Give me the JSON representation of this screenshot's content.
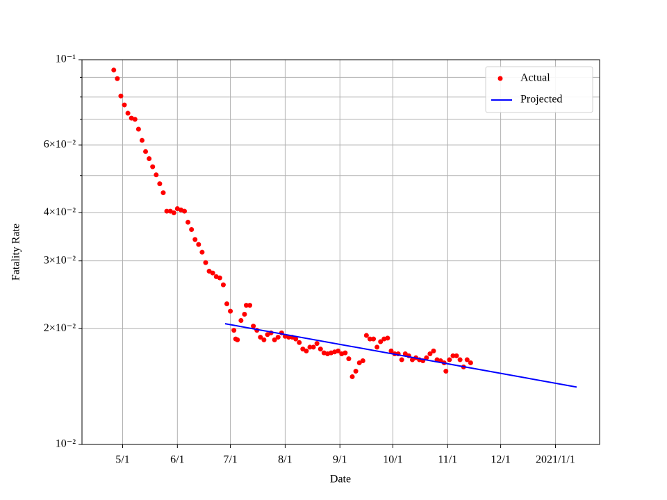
{
  "chart_data": {
    "type": "scatter",
    "xlabel": "Date",
    "ylabel": "Fatality Rate",
    "xlim": [
      -23,
      270
    ],
    "xticks": [
      {
        "value": 0,
        "label": "5/1"
      },
      {
        "value": 31,
        "label": "6/1"
      },
      {
        "value": 61,
        "label": "7/1"
      },
      {
        "value": 92,
        "label": "8/1"
      },
      {
        "value": 123,
        "label": "9/1"
      },
      {
        "value": 153,
        "label": "10/1"
      },
      {
        "value": 184,
        "label": "11/1"
      },
      {
        "value": 214,
        "label": "12/1"
      },
      {
        "value": 245,
        "label": "2021/1/1"
      }
    ],
    "ylim": [
      0.01,
      0.1
    ],
    "log_y": true,
    "grid": true,
    "legend": "upper right",
    "yticks": [
      {
        "value": 0.01,
        "label": "10⁻²"
      },
      {
        "value": 0.02,
        "label": "2×10⁻²"
      },
      {
        "value": 0.03,
        "label": "3×10⁻²"
      },
      {
        "value": 0.04,
        "label": "4×10⁻²"
      },
      {
        "value": 0.06,
        "label": "6×10⁻²"
      },
      {
        "value": 0.1,
        "label": "10⁻¹"
      }
    ],
    "y_minor_ticks": [
      0.05,
      0.07,
      0.08,
      0.09
    ],
    "series": [
      {
        "name": "Actual",
        "type": "scatter",
        "color": "#ff0000",
        "x": [
          -5,
          -3,
          -1,
          1,
          3,
          5,
          7,
          9,
          11,
          13,
          15,
          17,
          19,
          21,
          23,
          25,
          27,
          29,
          31,
          33,
          35,
          37,
          39,
          41,
          43,
          45,
          47,
          49,
          51,
          53,
          55,
          57,
          59,
          61,
          63,
          64,
          65,
          67,
          69,
          70,
          72,
          74,
          76,
          78,
          80,
          82,
          84,
          86,
          88,
          90,
          92,
          94,
          96,
          98,
          100,
          102,
          104,
          106,
          108,
          110,
          112,
          114,
          116,
          118,
          120,
          122,
          124,
          126,
          128,
          130,
          132,
          134,
          136,
          138,
          140,
          142,
          144,
          146,
          148,
          150,
          152,
          154,
          156,
          158,
          160,
          162,
          164,
          166,
          168,
          170,
          172,
          174,
          176,
          178,
          180,
          182,
          183,
          185,
          187,
          189,
          191,
          193,
          195,
          197
        ],
        "values": [
          0.094,
          0.0893,
          0.0805,
          0.0763,
          0.0726,
          0.0705,
          0.07,
          0.066,
          0.0617,
          0.0577,
          0.0553,
          0.0527,
          0.0502,
          0.0476,
          0.0451,
          0.0404,
          0.0404,
          0.04,
          0.041,
          0.0407,
          0.0404,
          0.0378,
          0.0362,
          0.0341,
          0.0331,
          0.0316,
          0.0297,
          0.0282,
          0.0279,
          0.0273,
          0.0271,
          0.026,
          0.0232,
          0.0222,
          0.0198,
          0.0188,
          0.0187,
          0.021,
          0.0218,
          0.023,
          0.023,
          0.0203,
          0.0198,
          0.019,
          0.0187,
          0.0193,
          0.0195,
          0.0187,
          0.019,
          0.0195,
          0.0191,
          0.019,
          0.019,
          0.0188,
          0.0184,
          0.0177,
          0.0175,
          0.0179,
          0.0179,
          0.0183,
          0.0177,
          0.0173,
          0.0172,
          0.0173,
          0.0174,
          0.0175,
          0.0172,
          0.0173,
          0.0167,
          0.015,
          0.0155,
          0.0163,
          0.0165,
          0.0192,
          0.0188,
          0.0188,
          0.0179,
          0.0185,
          0.0188,
          0.0189,
          0.0175,
          0.0172,
          0.0172,
          0.0166,
          0.0172,
          0.017,
          0.0166,
          0.0168,
          0.0166,
          0.0165,
          0.0168,
          0.0172,
          0.0175,
          0.0166,
          0.0165,
          0.0163,
          0.0155,
          0.0166,
          0.017,
          0.017,
          0.0166,
          0.0159,
          0.0166,
          0.0163
        ]
      },
      {
        "name": "Projected",
        "type": "line",
        "color": "#0000ff",
        "x": [
          58,
          257
        ],
        "values": [
          0.0206,
          0.0141
        ]
      }
    ]
  }
}
